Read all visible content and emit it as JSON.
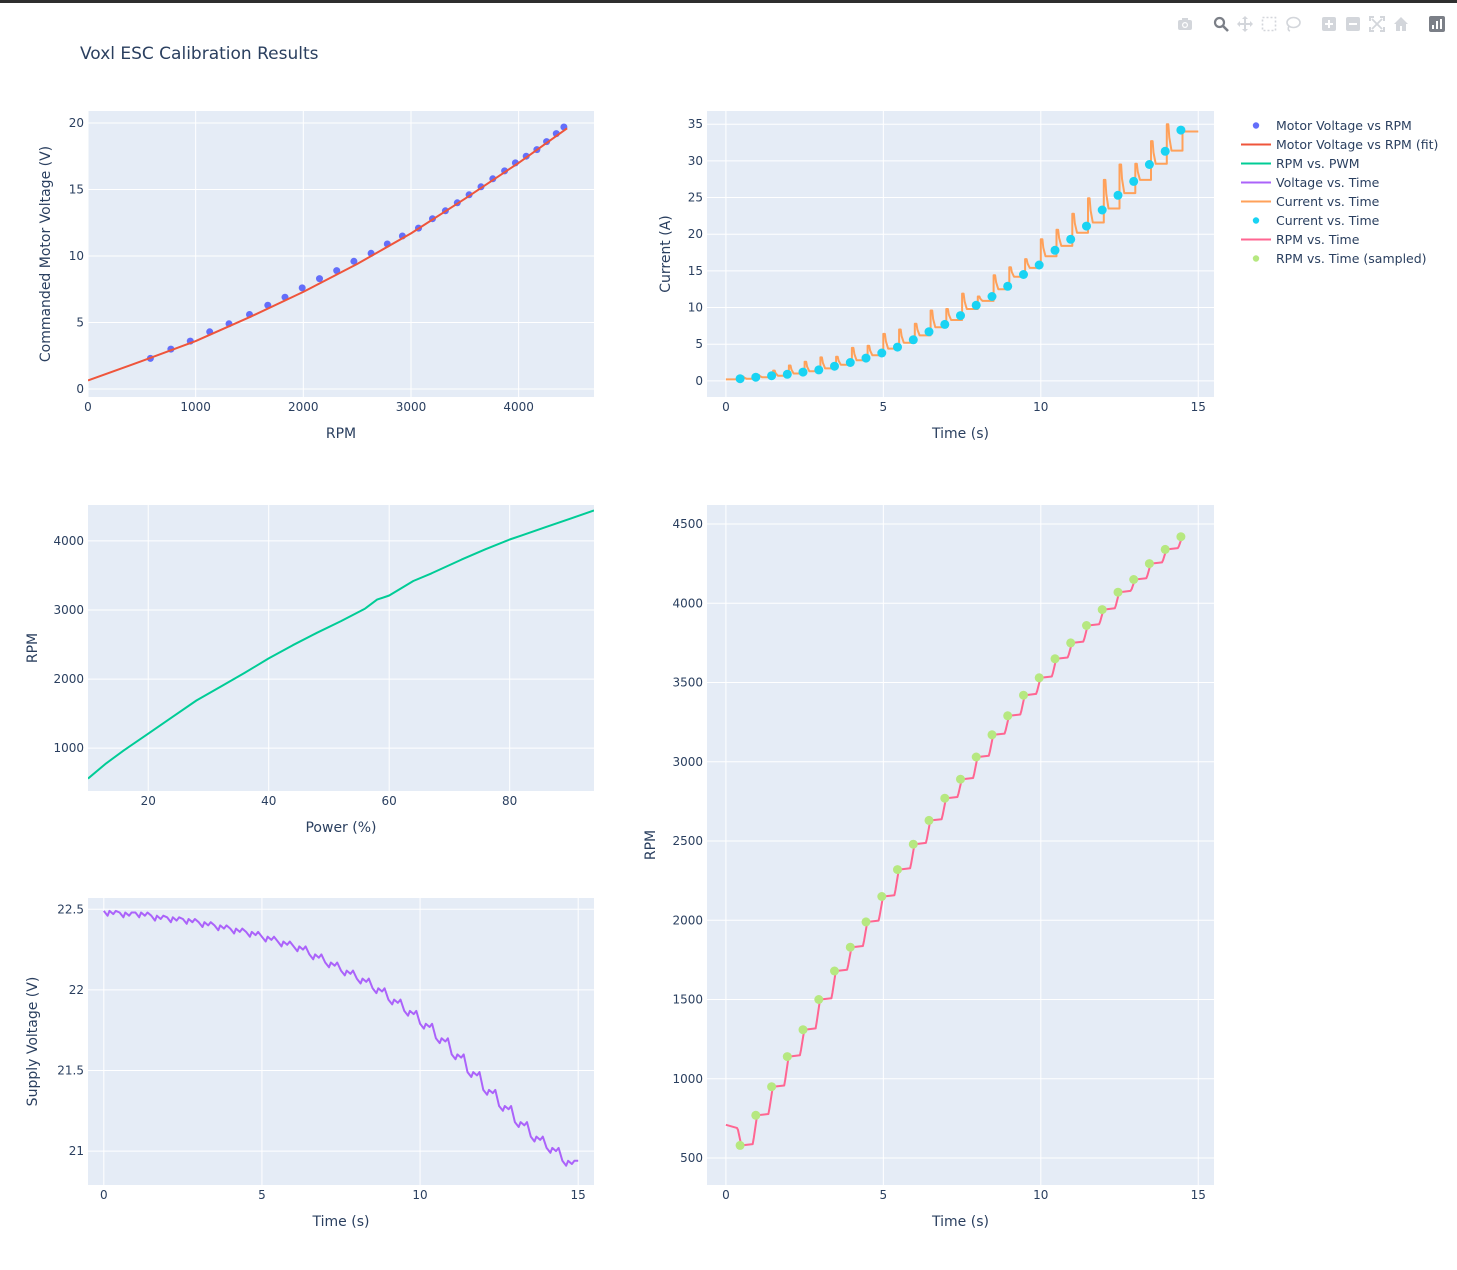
{
  "title": "Voxl ESC Calibration Results",
  "modebar": [
    "camera-icon",
    "zoom-icon",
    "pan-icon",
    "box-select-icon",
    "lasso-select-icon",
    "zoom-in-icon",
    "zoom-out-icon",
    "autoscale-icon",
    "reset-axes-icon",
    "plotly-logo-icon"
  ],
  "legend": [
    {
      "label": "Motor Voltage vs RPM",
      "mode": "markers",
      "color": "#636efa"
    },
    {
      "label": "Motor Voltage vs RPM (fit)",
      "mode": "lines",
      "color": "#EF553B"
    },
    {
      "label": "RPM vs. PWM",
      "mode": "lines",
      "color": "#00cc96"
    },
    {
      "label": "Voltage vs. Time",
      "mode": "lines",
      "color": "#ab63fa"
    },
    {
      "label": "Current vs. Time",
      "mode": "lines",
      "color": "#FFA15A"
    },
    {
      "label": "Current vs. Time",
      "mode": "markers",
      "color": "#19d3f3"
    },
    {
      "label": "RPM vs. Time",
      "mode": "lines",
      "color": "#FF6692"
    },
    {
      "label": "RPM vs. Time (sampled)",
      "mode": "markers",
      "color": "#B6E880"
    }
  ],
  "chart_data": [
    {
      "id": "voltage_vs_rpm",
      "type": "scatter",
      "xlabel": "RPM",
      "ylabel": "Commanded Motor Voltage (V)",
      "xlim": [
        0,
        4700
      ],
      "ylim": [
        -0.6,
        20.9
      ],
      "xticks": [
        0,
        1000,
        2000,
        3000,
        4000
      ],
      "yticks": [
        0,
        5,
        10,
        15,
        20
      ],
      "series": [
        {
          "name": "Motor Voltage vs RPM",
          "mode": "markers",
          "color": "#636efa",
          "x": [
            580,
            770,
            950,
            1130,
            1310,
            1500,
            1670,
            1830,
            1990,
            2150,
            2310,
            2470,
            2630,
            2780,
            2920,
            3070,
            3200,
            3320,
            3430,
            3540,
            3650,
            3760,
            3870,
            3970,
            4070,
            4170,
            4260,
            4350,
            4420
          ],
          "y": [
            2.3,
            3.0,
            3.6,
            4.3,
            4.9,
            5.6,
            6.3,
            6.9,
            7.6,
            8.3,
            8.9,
            9.6,
            10.2,
            10.9,
            11.5,
            12.1,
            12.8,
            13.4,
            14.0,
            14.6,
            15.2,
            15.8,
            16.4,
            17.0,
            17.5,
            18.0,
            18.6,
            19.2,
            19.7
          ]
        },
        {
          "name": "Motor Voltage vs RPM (fit)",
          "mode": "lines",
          "color": "#EF553B",
          "x": [
            0,
            500,
            1000,
            1500,
            2000,
            2500,
            3000,
            3500,
            4000,
            4450
          ],
          "y": [
            0.65,
            2.1,
            3.6,
            5.4,
            7.3,
            9.4,
            11.7,
            14.3,
            17.0,
            19.6
          ]
        }
      ]
    },
    {
      "id": "current_vs_time",
      "type": "line",
      "xlabel": "Time (s)",
      "ylabel": "Current (A)",
      "xlim": [
        -0.6,
        15.5
      ],
      "ylim": [
        -2.2,
        36.8
      ],
      "xticks": [
        0,
        5,
        10,
        15
      ],
      "yticks": [
        0,
        5,
        10,
        15,
        20,
        25,
        30,
        35
      ],
      "series": [
        {
          "name": "Current vs. Time",
          "mode": "lines",
          "color": "#FFA15A",
          "steps": [
            [
              0.0,
              0.2,
              0.2
            ],
            [
              0.5,
              0.6,
              0.3
            ],
            [
              1.0,
              0.8,
              0.5
            ],
            [
              1.5,
              1.4,
              0.7
            ],
            [
              2.0,
              2.1,
              1.0
            ],
            [
              2.5,
              2.6,
              1.3
            ],
            [
              3.0,
              3.2,
              1.7
            ],
            [
              3.5,
              3.3,
              2.2
            ],
            [
              4.0,
              4.5,
              2.8
            ],
            [
              4.5,
              4.8,
              3.5
            ],
            [
              5.0,
              6.4,
              4.4
            ],
            [
              5.5,
              7.0,
              5.2
            ],
            [
              6.0,
              7.8,
              6.2
            ],
            [
              6.5,
              9.6,
              7.3
            ],
            [
              7.0,
              9.8,
              8.3
            ],
            [
              7.5,
              11.9,
              9.8
            ],
            [
              8.0,
              11.5,
              10.9
            ],
            [
              8.5,
              14.4,
              12.5
            ],
            [
              9.0,
              15.5,
              14.2
            ],
            [
              9.5,
              16.6,
              15.4
            ],
            [
              10.0,
              19.3,
              17.0
            ],
            [
              10.5,
              20.6,
              18.4
            ],
            [
              11.0,
              22.8,
              20.2
            ],
            [
              11.5,
              24.9,
              21.6
            ],
            [
              12.0,
              27.4,
              23.5
            ],
            [
              12.5,
              29.5,
              25.6
            ],
            [
              13.0,
              29.6,
              27.4
            ],
            [
              13.5,
              32.7,
              29.6
            ],
            [
              14.0,
              35.0,
              31.4
            ],
            [
              14.5,
              34.0,
              34.0
            ]
          ]
        },
        {
          "name": "Current vs. Time",
          "mode": "markers",
          "color": "#19d3f3",
          "x": [
            0.45,
            0.95,
            1.45,
            1.95,
            2.45,
            2.95,
            3.45,
            3.95,
            4.45,
            4.95,
            5.45,
            5.95,
            6.45,
            6.95,
            7.45,
            7.95,
            8.45,
            8.95,
            9.45,
            9.95,
            10.45,
            10.95,
            11.45,
            11.95,
            12.45,
            12.95,
            13.45,
            13.95,
            14.45
          ],
          "y": [
            0.3,
            0.5,
            0.7,
            0.9,
            1.2,
            1.5,
            2.0,
            2.5,
            3.1,
            3.8,
            4.6,
            5.6,
            6.7,
            7.7,
            8.9,
            10.3,
            11.5,
            12.9,
            14.5,
            15.8,
            17.8,
            19.3,
            21.1,
            23.3,
            25.3,
            27.2,
            29.5,
            31.3,
            34.2
          ]
        }
      ]
    },
    {
      "id": "rpm_vs_power",
      "type": "line",
      "xlabel": "Power (%)",
      "ylabel": "RPM",
      "xlim": [
        10,
        94
      ],
      "ylim": [
        380,
        4520
      ],
      "xticks": [
        20,
        40,
        60,
        80
      ],
      "yticks": [
        1000,
        2000,
        3000,
        4000
      ],
      "series": [
        {
          "name": "RPM vs. PWM",
          "mode": "lines",
          "color": "#00cc96",
          "x": [
            10,
            13,
            16,
            20,
            24,
            28,
            32,
            36,
            40,
            44,
            48,
            52,
            56,
            58,
            60,
            64,
            67,
            72,
            76,
            80,
            82,
            86,
            90,
            94
          ],
          "y": [
            560,
            780,
            970,
            1210,
            1450,
            1690,
            1890,
            2090,
            2300,
            2490,
            2670,
            2840,
            3020,
            3150,
            3210,
            3420,
            3530,
            3730,
            3880,
            4020,
            4080,
            4200,
            4320,
            4440
          ]
        }
      ]
    },
    {
      "id": "supply_voltage_vs_time",
      "type": "line",
      "xlabel": "Time (s)",
      "ylabel": "Supply Voltage (V)",
      "xlim": [
        -0.5,
        15.5
      ],
      "ylim": [
        20.79,
        22.57
      ],
      "xticks": [
        0,
        5,
        10,
        15
      ],
      "xticklabels": [
        "0",
        "5",
        "10",
        "15"
      ],
      "yticks": [
        21,
        21.5,
        22,
        22.5
      ],
      "yticklabels": [
        "21",
        "21.5",
        "22",
        "22.5"
      ],
      "series": [
        {
          "name": "Voltage vs. Time",
          "mode": "lines",
          "color": "#ab63fa",
          "x": [
            0.0,
            0.5,
            1.0,
            1.5,
            2.0,
            2.5,
            3.0,
            3.5,
            4.0,
            4.5,
            5.0,
            5.5,
            6.0,
            6.5,
            7.0,
            7.5,
            8.0,
            8.5,
            9.0,
            9.5,
            10.0,
            10.5,
            11.0,
            11.5,
            12.0,
            12.5,
            13.0,
            13.5,
            14.0,
            14.5
          ],
          "y": [
            22.49,
            22.48,
            22.48,
            22.46,
            22.45,
            22.44,
            22.42,
            22.4,
            22.38,
            22.36,
            22.33,
            22.3,
            22.27,
            22.22,
            22.17,
            22.12,
            22.07,
            22.01,
            21.94,
            21.87,
            21.79,
            21.7,
            21.6,
            21.49,
            21.38,
            21.28,
            21.18,
            21.09,
            21.02,
            20.94
          ]
        }
      ]
    },
    {
      "id": "rpm_vs_time",
      "type": "line",
      "xlabel": "Time (s)",
      "ylabel": "RPM",
      "xlim": [
        -0.6,
        15.5
      ],
      "ylim": [
        330,
        4620
      ],
      "xticks": [
        0,
        5,
        10,
        15
      ],
      "yticks": [
        500,
        1000,
        1500,
        2000,
        2500,
        3000,
        3500,
        4000,
        4500
      ],
      "series": [
        {
          "name": "RPM vs. Time",
          "mode": "lines",
          "color": "#FF6692",
          "x": [
            0.0,
            0.5,
            1.0,
            1.5,
            2.0,
            2.5,
            3.0,
            3.5,
            4.0,
            4.5,
            5.0,
            5.5,
            6.0,
            6.5,
            7.0,
            7.5,
            8.0,
            8.5,
            9.0,
            9.5,
            10.0,
            10.5,
            11.0,
            11.5,
            12.0,
            12.5,
            13.0,
            13.5,
            14.0,
            14.5
          ],
          "y": [
            710,
            580,
            770,
            950,
            1140,
            1310,
            1500,
            1680,
            1830,
            1990,
            2150,
            2320,
            2480,
            2630,
            2770,
            2890,
            3030,
            3170,
            3290,
            3420,
            3530,
            3650,
            3750,
            3860,
            3960,
            4070,
            4150,
            4250,
            4340,
            4420
          ]
        },
        {
          "name": "RPM vs. Time (sampled)",
          "mode": "markers",
          "color": "#B6E880",
          "x": [
            0.45,
            0.95,
            1.45,
            1.95,
            2.45,
            2.95,
            3.45,
            3.95,
            4.45,
            4.95,
            5.45,
            5.95,
            6.45,
            6.95,
            7.45,
            7.95,
            8.45,
            8.95,
            9.45,
            9.95,
            10.45,
            10.95,
            11.45,
            11.95,
            12.45,
            12.95,
            13.45,
            13.95,
            14.45
          ],
          "y": [
            580,
            770,
            950,
            1140,
            1310,
            1500,
            1680,
            1830,
            1990,
            2150,
            2320,
            2480,
            2630,
            2770,
            2890,
            3030,
            3170,
            3290,
            3420,
            3530,
            3650,
            3750,
            3860,
            3960,
            4070,
            4150,
            4250,
            4340,
            4420
          ]
        }
      ]
    }
  ]
}
